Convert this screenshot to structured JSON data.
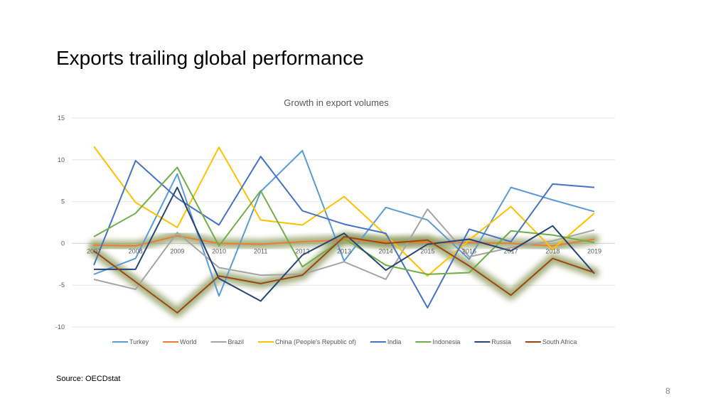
{
  "slide": {
    "title": "Exports trailing global performance",
    "source": "Source: OECDstat",
    "page_number": "8"
  },
  "chart_data": {
    "type": "line",
    "title": "Growth in export volumes",
    "xlabel": "",
    "ylabel": "",
    "x": [
      "2007",
      "2008",
      "2009",
      "2010",
      "2011",
      "2012",
      "2013",
      "2014",
      "2015",
      "2016",
      "2017",
      "2018",
      "2019"
    ],
    "x_tick_labels": [
      "2007",
      "2008",
      "2009",
      "2010",
      "2011",
      "2012",
      "2013",
      "2014",
      "2015",
      "2016",
      "2017",
      "2018",
      "2019"
    ],
    "ylim": [
      -10,
      15
    ],
    "yticks": [
      -10,
      -5,
      0,
      5,
      10,
      15
    ],
    "grid": true,
    "legend_position": "bottom",
    "highlight": [
      "World",
      "South Africa"
    ],
    "highlight_color": "#8a9a5b",
    "series": [
      {
        "name": "Turkey",
        "color": "#5b9bd5",
        "values": [
          -3.7,
          -1.8,
          8.3,
          -6.3,
          6.2,
          11.1,
          -2.1,
          4.3,
          2.8,
          -1.9,
          6.7,
          5.2,
          3.8
        ]
      },
      {
        "name": "World",
        "color": "#ed7d31",
        "values": [
          -0.2,
          -0.3,
          0.9,
          0.0,
          -0.1,
          0.2,
          0.4,
          0.2,
          0.1,
          0.1,
          0.0,
          -0.3,
          0.5
        ]
      },
      {
        "name": "Brazil",
        "color": "#a5a5a5",
        "values": [
          -4.3,
          -5.5,
          1.3,
          -2.9,
          -3.8,
          -3.7,
          -2.2,
          -4.3,
          4.1,
          -1.6,
          -0.5,
          0.3,
          1.6
        ]
      },
      {
        "name": "China (People's Republic of)",
        "color": "#ffc000",
        "values": [
          11.6,
          4.9,
          1.9,
          11.5,
          2.8,
          2.2,
          5.6,
          1.0,
          -3.9,
          0.4,
          4.4,
          -0.7,
          3.6
        ]
      },
      {
        "name": "India",
        "color": "#4472c4",
        "values": [
          -2.6,
          9.9,
          5.4,
          2.2,
          10.4,
          3.9,
          2.3,
          1.2,
          -7.7,
          1.7,
          0.2,
          7.1,
          6.7
        ]
      },
      {
        "name": "Indonesia",
        "color": "#70ad47",
        "values": [
          0.8,
          3.6,
          9.1,
          -0.3,
          6.3,
          -2.8,
          0.6,
          -2.6,
          -3.7,
          -3.5,
          1.5,
          1.0,
          0.1
        ]
      },
      {
        "name": "Russia",
        "color": "#264478",
        "values": [
          -3.1,
          -3.1,
          6.7,
          -4.2,
          -6.9,
          -1.4,
          1.2,
          -3.2,
          -0.1,
          0.5,
          -0.9,
          2.1,
          -3.6
        ]
      },
      {
        "name": "South Africa",
        "color": "#9e480e",
        "values": [
          -0.9,
          -4.6,
          -8.3,
          -3.9,
          -4.8,
          -3.8,
          0.8,
          0.0,
          0.4,
          -2.7,
          -6.2,
          -1.8,
          -3.5
        ]
      }
    ]
  }
}
